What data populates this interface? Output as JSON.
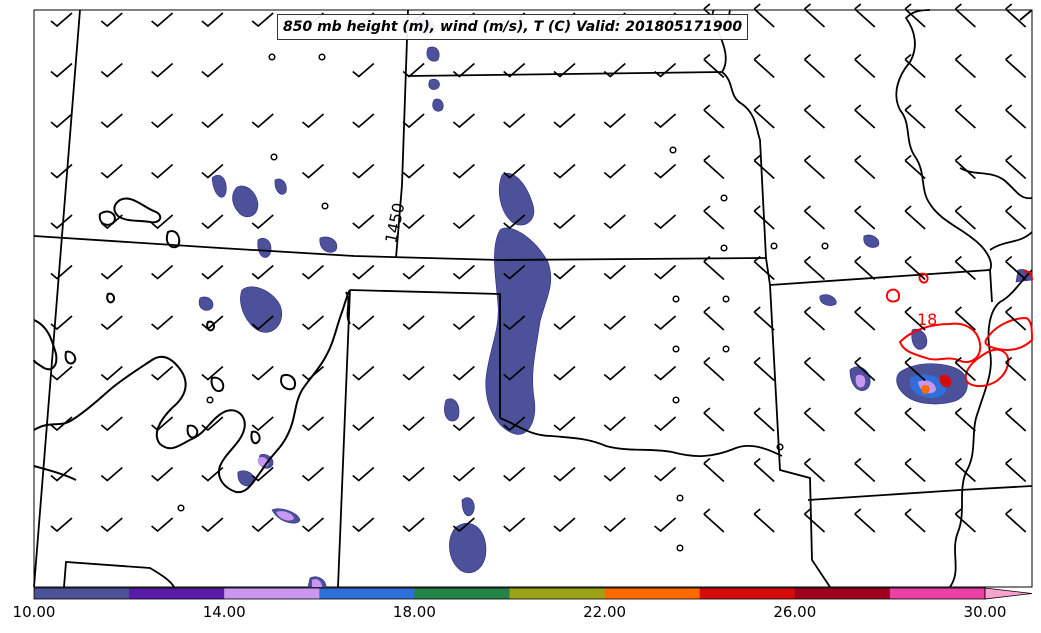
{
  "title": "850 mb height (m), wind (m/s), T (C) Valid: 201805171900",
  "height_contour_label": "1450",
  "temperature_contour_label": "18",
  "colorbar": {
    "colors": [
      "#4c5199",
      "#5a1ca6",
      "#c996f0",
      "#2f6fd9",
      "#238447",
      "#9aa416",
      "#ff6a00",
      "#d70a0a",
      "#a0001f",
      "#ec40a6",
      "#f8a3cf"
    ],
    "tick_labels": [
      "10.00",
      "14.00",
      "18.00",
      "22.00",
      "26.00",
      "30.00"
    ],
    "min": 10,
    "max": 30,
    "step": 2,
    "extend": "max"
  },
  "colors": {
    "boundary": "#000000",
    "temp_contour": "#ff0000",
    "precip_base": "#4c5199",
    "precip_outline": "#2a2a8a"
  }
}
